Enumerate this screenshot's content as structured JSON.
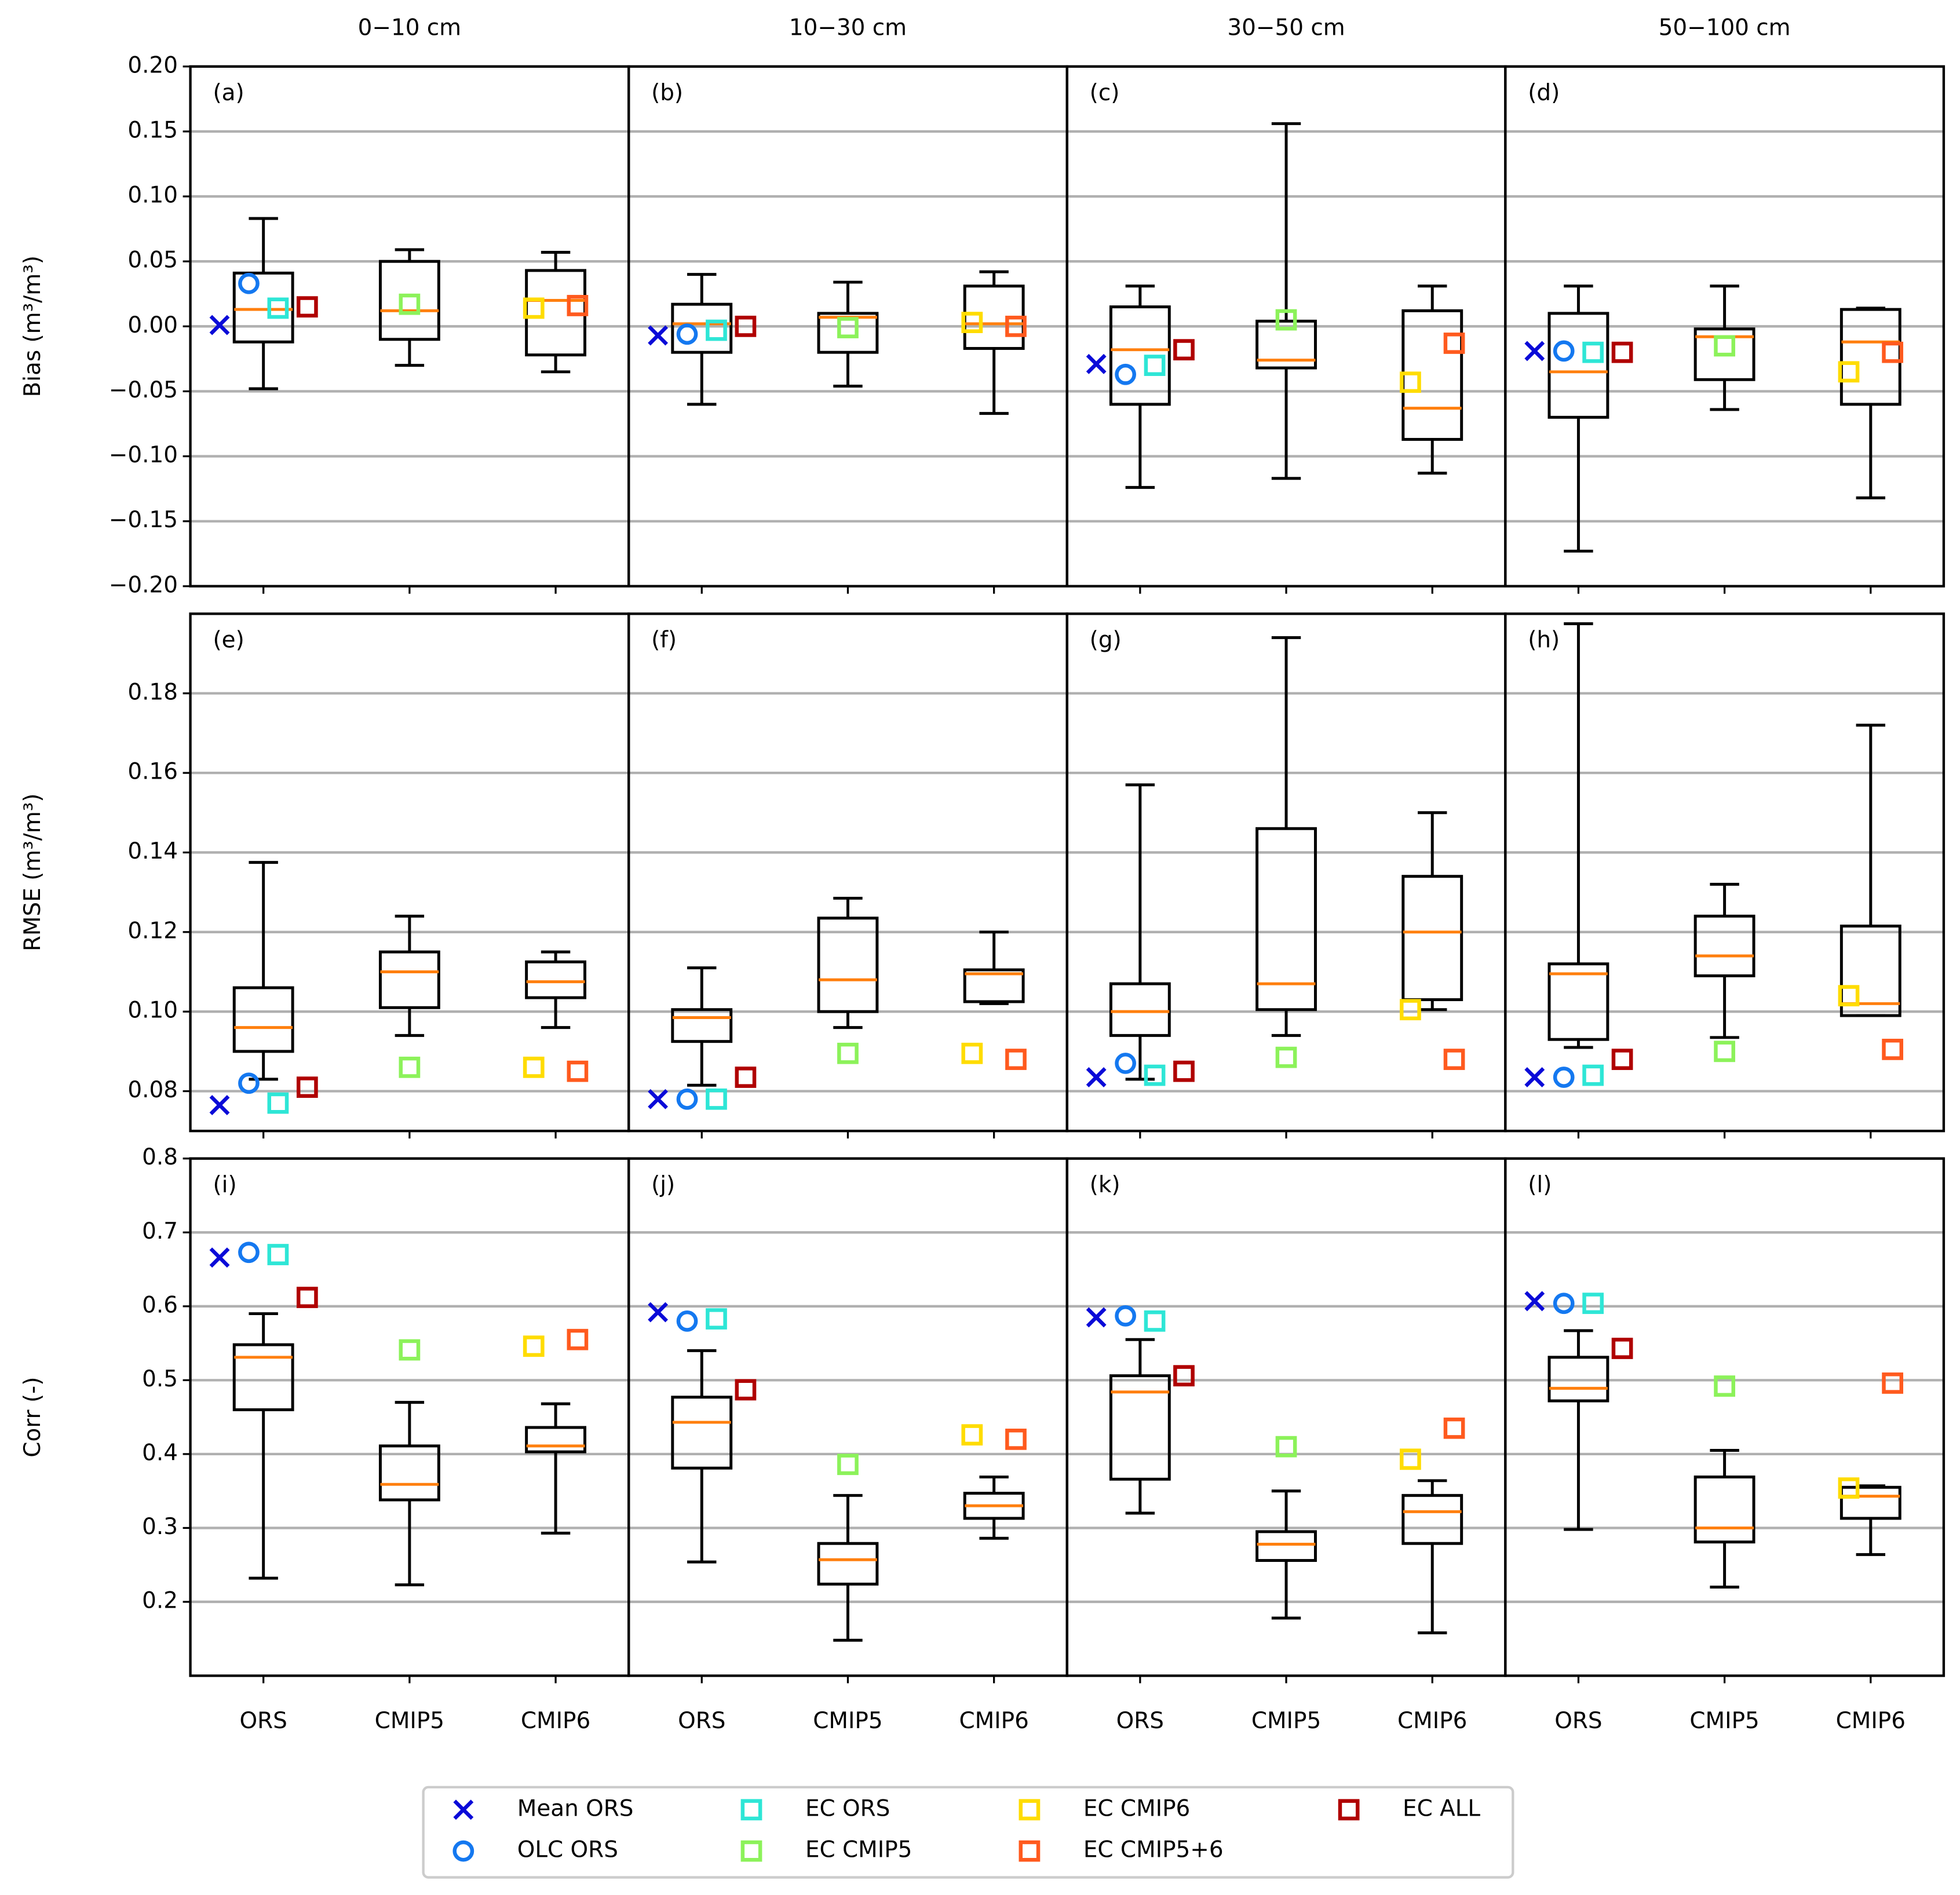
{
  "chart_data": {
    "type": "box",
    "columns": [
      "0−10 cm",
      "10−30 cm",
      "30−50 cm",
      "50−100 cm"
    ],
    "categories": [
      "ORS",
      "CMIP5",
      "CMIP6"
    ],
    "median_color": "#ff7f0e",
    "grid": true,
    "rows": [
      {
        "ylabel": "Bias (m³/m³)",
        "ylim": [
          -0.2,
          0.2
        ],
        "yticks": [
          {
            "value": -0.2,
            "label": "−0.20"
          },
          {
            "value": -0.15,
            "label": "−0.15"
          },
          {
            "value": -0.1,
            "label": "−0.10"
          },
          {
            "value": -0.05,
            "label": "−0.05"
          },
          {
            "value": 0,
            "label": "0.00"
          },
          0.05,
          {
            "value": 0.1,
            "label": "0.10"
          },
          0.15,
          {
            "value": 0.2,
            "label": "0.20"
          }
        ]
      },
      {
        "ylabel": "RMSE (m³/m³)",
        "ylim": [
          0.07,
          0.2
        ],
        "yticks": [
          0.08,
          {
            "value": 0.1,
            "label": "0.10"
          },
          0.12,
          0.14,
          0.16,
          0.18
        ]
      },
      {
        "ylabel": "Corr (-)",
        "ylim": [
          0.1,
          0.8
        ],
        "yticks": [
          0.2,
          0.3,
          0.4,
          0.5,
          0.6,
          0.7,
          0.8
        ]
      }
    ],
    "panels": [
      {
        "label": "(a)",
        "whislo": [
          -0.048,
          -0.03,
          -0.035
        ],
        "q1": [
          -0.012,
          -0.01,
          -0.022
        ],
        "median": [
          0.013,
          0.012,
          0.02
        ],
        "q3": [
          0.041,
          0.05,
          0.043
        ],
        "whishi": [
          0.083,
          0.059,
          0.057
        ]
      },
      {
        "label": "(b)",
        "whislo": [
          -0.06,
          -0.046,
          -0.067
        ],
        "q1": [
          -0.02,
          -0.02,
          -0.017
        ],
        "median": [
          0.002,
          0.007,
          0.002
        ],
        "q3": [
          0.017,
          0.01,
          0.031
        ],
        "whishi": [
          0.04,
          0.034,
          0.042
        ]
      },
      {
        "label": "(c)",
        "whislo": [
          -0.124,
          -0.117,
          -0.113
        ],
        "q1": [
          -0.06,
          -0.032,
          -0.087
        ],
        "median": [
          -0.018,
          -0.026,
          -0.063
        ],
        "q3": [
          0.015,
          0.004,
          0.012
        ],
        "whishi": [
          0.031,
          0.156,
          0.031
        ]
      },
      {
        "label": "(d)",
        "whislo": [
          -0.173,
          -0.064,
          -0.132
        ],
        "q1": [
          -0.07,
          -0.041,
          -0.06
        ],
        "median": [
          -0.035,
          -0.008,
          -0.012
        ],
        "q3": [
          0.01,
          -0.002,
          0.013
        ],
        "whishi": [
          0.031,
          0.031,
          0.014
        ]
      },
      {
        "label": "(e)",
        "whislo": [
          0.083,
          0.094,
          0.096
        ],
        "q1": [
          0.09,
          0.101,
          0.1035
        ],
        "median": [
          0.096,
          0.11,
          0.1075
        ],
        "q3": [
          0.106,
          0.115,
          0.1125
        ],
        "whishi": [
          0.1375,
          0.124,
          0.115
        ]
      },
      {
        "label": "(f)",
        "whislo": [
          0.0815,
          0.096,
          0.102
        ],
        "q1": [
          0.0925,
          0.1,
          0.1025
        ],
        "median": [
          0.0985,
          0.108,
          0.1095
        ],
        "q3": [
          0.1005,
          0.1235,
          0.1105
        ],
        "whishi": [
          0.111,
          0.1285,
          0.12
        ]
      },
      {
        "label": "(g)",
        "whislo": [
          0.083,
          0.094,
          0.1005
        ],
        "q1": [
          0.094,
          0.1005,
          0.103
        ],
        "median": [
          0.1,
          0.107,
          0.12
        ],
        "q3": [
          0.107,
          0.146,
          0.134
        ],
        "whishi": [
          0.157,
          0.194,
          0.15
        ]
      },
      {
        "label": "(h)",
        "whislo": [
          0.091,
          0.0935,
          0.099
        ],
        "q1": [
          0.093,
          0.109,
          0.099
        ],
        "median": [
          0.1095,
          0.114,
          0.102
        ],
        "q3": [
          0.112,
          0.124,
          0.1215
        ],
        "whishi": [
          0.1975,
          0.132,
          0.172
        ]
      },
      {
        "label": "(i)",
        "whislo": [
          0.232,
          0.223,
          0.293
        ],
        "q1": [
          0.46,
          0.338,
          0.403
        ],
        "median": [
          0.531,
          0.359,
          0.411
        ],
        "q3": [
          0.548,
          0.411,
          0.436
        ],
        "whishi": [
          0.59,
          0.47,
          0.468
        ]
      },
      {
        "label": "(j)",
        "whislo": [
          0.254,
          0.148,
          0.286
        ],
        "q1": [
          0.381,
          0.224,
          0.313
        ],
        "median": [
          0.443,
          0.257,
          0.33
        ],
        "q3": [
          0.477,
          0.279,
          0.347
        ],
        "whishi": [
          0.54,
          0.344,
          0.369
        ]
      },
      {
        "label": "(k)",
        "whislo": [
          0.32,
          0.178,
          0.158
        ],
        "q1": [
          0.366,
          0.256,
          0.279
        ],
        "median": [
          0.484,
          0.278,
          0.322
        ],
        "q3": [
          0.506,
          0.295,
          0.344
        ],
        "whishi": [
          0.555,
          0.35,
          0.364
        ]
      },
      {
        "label": "(l)",
        "whislo": [
          0.298,
          0.22,
          0.264
        ],
        "q1": [
          0.472,
          0.281,
          0.313
        ],
        "median": [
          0.489,
          0.3,
          0.343
        ],
        "q3": [
          0.531,
          0.369,
          0.355
        ],
        "whishi": [
          0.567,
          0.405,
          0.357
        ]
      }
    ],
    "series": [
      {
        "name": "Mean ORS",
        "color": "#0a0ad8",
        "marker": "x",
        "values": [
          0.001,
          -0.007,
          -0.029,
          -0.019,
          0.0765,
          0.078,
          0.0835,
          0.0835,
          0.666,
          0.592,
          0.585,
          0.607
        ]
      },
      {
        "name": "OLC ORS",
        "color": "#1478f0",
        "marker": "o",
        "values": [
          0.033,
          -0.006,
          -0.037,
          -0.019,
          0.082,
          0.078,
          0.087,
          0.0835,
          0.673,
          0.58,
          0.587,
          0.604
        ]
      },
      {
        "name": "EC ORS",
        "color": "#2ee6d6",
        "marker": "s",
        "values": [
          0.014,
          -0.003,
          -0.03,
          -0.02,
          0.077,
          0.078,
          0.084,
          0.084,
          0.67,
          0.583,
          0.58,
          0.604
        ]
      },
      {
        "name": "EC CMIP5",
        "color": "#8cf25a",
        "marker": "s",
        "values": [
          0.017,
          -0.001,
          0.005,
          -0.015,
          0.086,
          0.0895,
          0.0885,
          0.09,
          0.541,
          0.386,
          0.41,
          0.492
        ]
      },
      {
        "name": "EC CMIP6",
        "color": "#ffdc00",
        "marker": "s",
        "values": [
          0.014,
          0.003,
          -0.043,
          -0.035,
          0.086,
          0.0895,
          0.1005,
          0.104,
          0.546,
          0.426,
          0.393,
          0.354
        ]
      },
      {
        "name": "EC CMIP5+6",
        "color": "#ff5a1e",
        "marker": "s",
        "values": [
          0.016,
          0,
          -0.013,
          -0.02,
          0.085,
          0.088,
          0.088,
          0.0905,
          0.555,
          0.42,
          0.435,
          0.496
        ]
      },
      {
        "name": "EC ALL",
        "color": "#b00000",
        "marker": "s",
        "values": [
          0.015,
          0,
          -0.018,
          -0.02,
          0.081,
          0.0835,
          0.085,
          0.088,
          0.612,
          0.487,
          0.506,
          0.543
        ]
      }
    ]
  }
}
